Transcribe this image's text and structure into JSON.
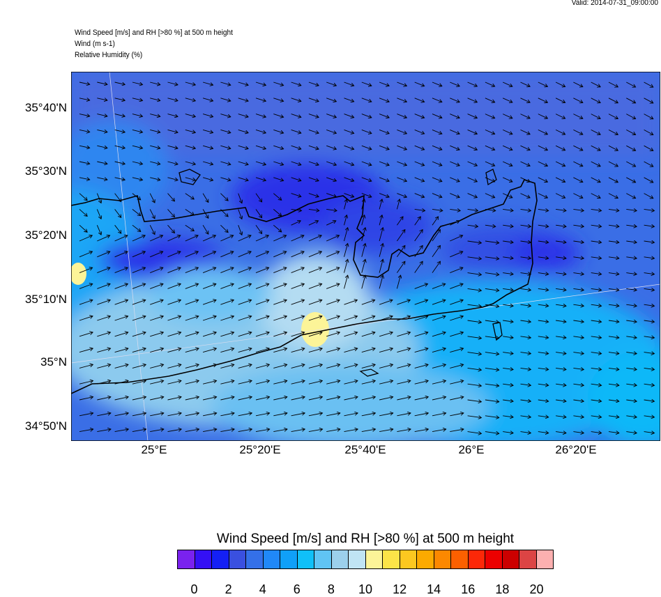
{
  "header": {
    "valid": "Valid: 2014-07-31_09:00:00",
    "title_lines": [
      "Wind Speed [m/s] and RH [>80 %] at 500 m height",
      "Wind   (m s-1)",
      "Relative Humidity    (%)"
    ]
  },
  "map": {
    "lat_ticks": [
      "35°40'N",
      "35°30'N",
      "35°20'N",
      "35°10'N",
      "35°N",
      "34°50'N"
    ],
    "lon_ticks": [
      "25°E",
      "25°20'E",
      "25°40'E",
      "26°E",
      "26°20'E"
    ],
    "field": "wind speed shaded, wind vectors, coastlines of Crete"
  },
  "colorbar": {
    "title": "Wind Speed [m/s] and RH [>80 %] at 500 m height",
    "labels": [
      "0",
      "2",
      "4",
      "6",
      "8",
      "10",
      "12",
      "14",
      "16",
      "18",
      "20"
    ],
    "colors": [
      "#7a22ee",
      "#3410f5",
      "#1420f5",
      "#3a50e0",
      "#3470e8",
      "#2088f8",
      "#10a0f8",
      "#10c0f8",
      "#60c4f4",
      "#9cd0ec",
      "#c0e4f4",
      "#fcf498",
      "#fce448",
      "#fcc820",
      "#fcaa00",
      "#fc8800",
      "#fc6000",
      "#fc2808",
      "#ec0000",
      "#cc0000",
      "#dc4444",
      "#fcb0b0"
    ]
  }
}
